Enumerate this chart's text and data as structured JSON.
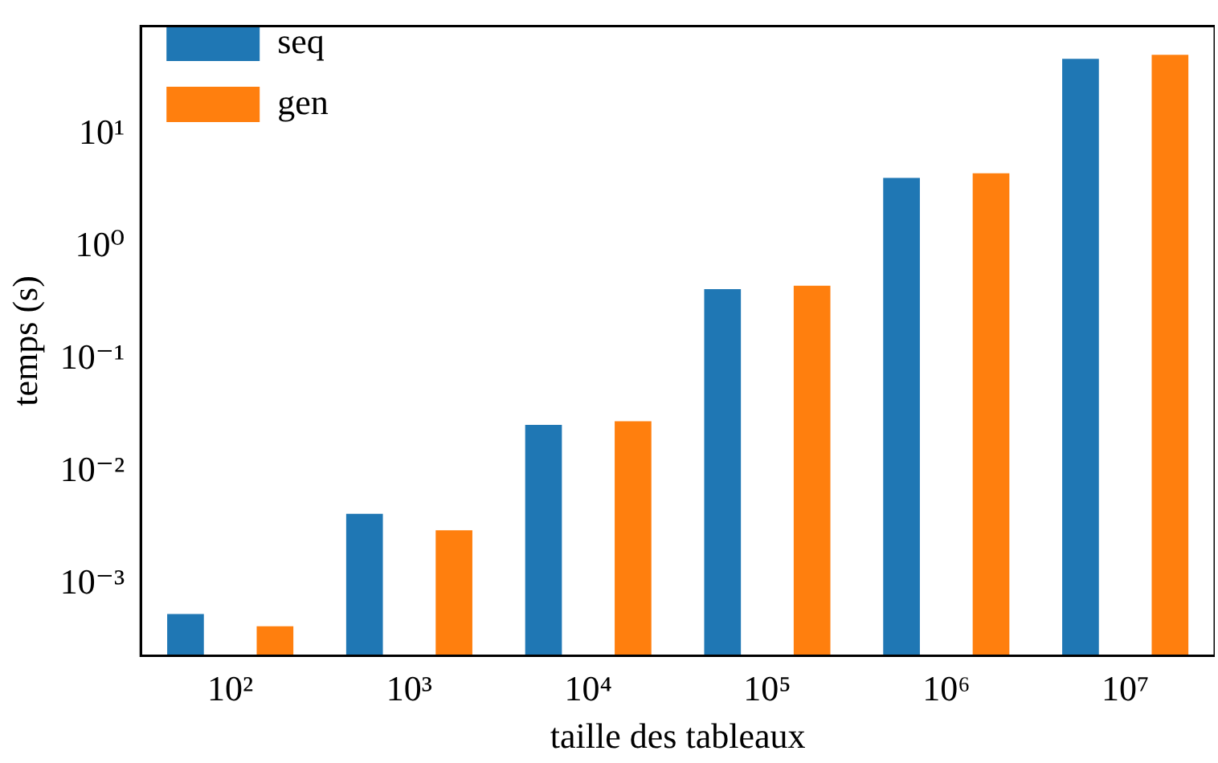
{
  "chart_data": {
    "type": "bar",
    "xlabel": "taille des tableaux",
    "ylabel": "temps (s)",
    "categories": [
      "10²",
      "10³",
      "10⁴",
      "10⁵",
      "10⁶",
      "10⁷"
    ],
    "series": [
      {
        "name": "seq",
        "color": "#1f77b4",
        "values": [
          0.00054,
          0.0042,
          0.026,
          0.42,
          4.1,
          47
        ]
      },
      {
        "name": "gen",
        "color": "#ff7f0e",
        "values": [
          0.00042,
          0.003,
          0.028,
          0.45,
          4.5,
          51
        ]
      }
    ],
    "log": "y",
    "ylim": [
      0.00023,
      92
    ],
    "yticks": [
      {
        "value": 0.001,
        "label": "10⁻³"
      },
      {
        "value": 0.01,
        "label": "10⁻²"
      },
      {
        "value": 0.1,
        "label": "10⁻¹"
      },
      {
        "value": 1,
        "label": "10⁰"
      },
      {
        "value": 10,
        "label": "10¹"
      }
    ],
    "grid": false,
    "legend": "top left"
  }
}
